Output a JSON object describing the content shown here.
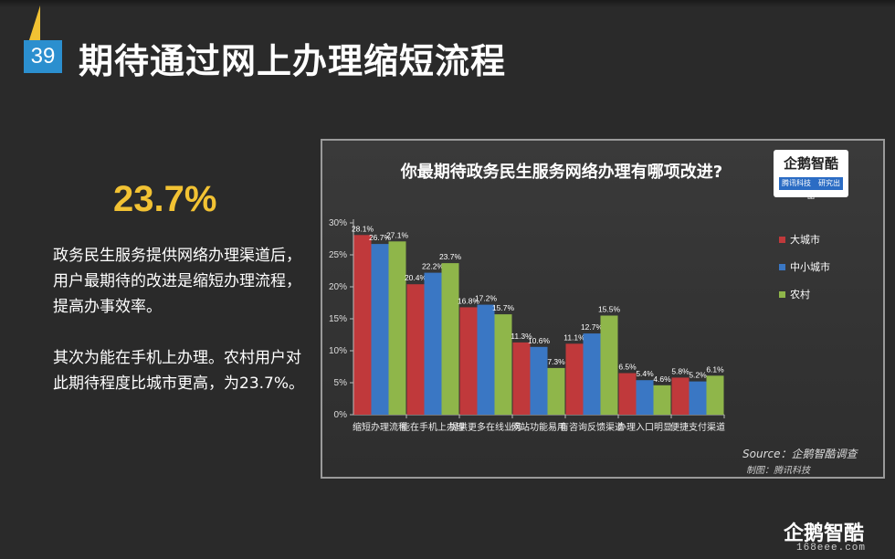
{
  "page": {
    "number": "39",
    "title": "期待通过网上办理缩短流程",
    "big_stat": "23.7%",
    "paragraph1": "政务民生服务提供网络办理渠道后，用户最期待的改进是缩短办理流程，提高办事效率。",
    "paragraph2": "其次为能在手机上办理。农村用户对此期待程度比城市更高，为23.7%。",
    "brand": "企鹅智酷",
    "site": "168eee.com"
  },
  "logo": {
    "main": "企鹅智酷",
    "sub": "腾讯科技　研究出品"
  },
  "source": {
    "line1": "Source：企鹅智酷调查",
    "line2": "制图：腾讯科技"
  },
  "colors": {
    "big_city": "#c0393b",
    "small_city": "#3a77c4",
    "rural": "#8fb64a",
    "accent": "#f2c233",
    "page_num_bg": "#2b8fcf"
  },
  "chart_data": {
    "type": "bar",
    "title": "你最期待政务民生服务网络办理有哪项改进?",
    "categories": [
      "缩短办理流程",
      "能在手机上办理",
      "提供更多在线业务",
      "网站功能易用",
      "有咨询反馈渠道",
      "办理入口明显",
      "便捷支付渠道"
    ],
    "series": [
      {
        "name": "大城市",
        "values": [
          28.1,
          20.4,
          16.8,
          11.3,
          11.1,
          6.5,
          5.8
        ],
        "labels": [
          "28.1%",
          "20.4%",
          "16.8%",
          "11.3%",
          "11.1%",
          "6.5%",
          "5.8%"
        ]
      },
      {
        "name": "中小城市",
        "values": [
          26.7,
          22.2,
          17.2,
          10.6,
          12.7,
          5.4,
          5.2
        ],
        "labels": [
          "26.7%",
          "22.2%",
          "17.2%",
          "10.6%",
          "12.7%",
          "5.4%",
          "5.2%"
        ]
      },
      {
        "name": "农村",
        "values": [
          27.1,
          23.7,
          15.7,
          7.3,
          15.5,
          4.6,
          6.1
        ],
        "labels": [
          "27.1%",
          "23.7%",
          "15.7%",
          "7.3%",
          "15.5%",
          "4.6%",
          "6.1%"
        ]
      }
    ],
    "yticks": [
      "0%",
      "5%",
      "10%",
      "15%",
      "20%",
      "25%",
      "30%"
    ],
    "ylim": [
      0,
      30
    ],
    "grid": false,
    "legend_position": "right"
  }
}
